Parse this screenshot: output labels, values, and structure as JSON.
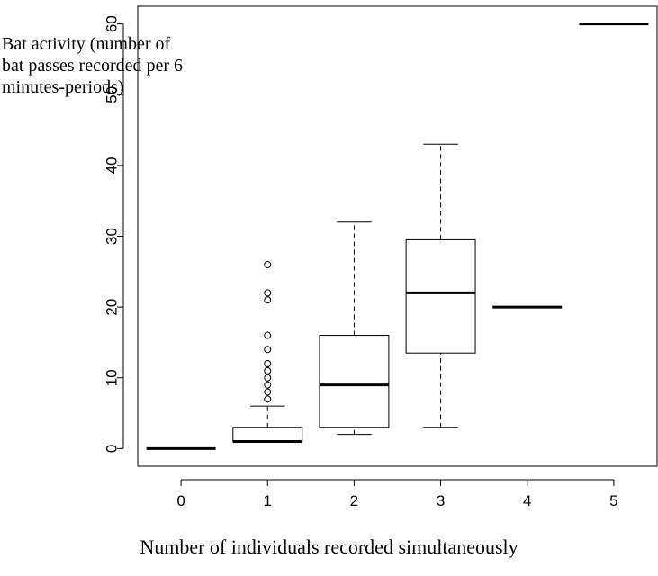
{
  "chart_data": {
    "type": "box",
    "title": "",
    "xlabel": "Number of individuals recorded simultaneously",
    "ylabel_lines": [
      "Bat activity (number of",
      "bat passes recorded per 6",
      "minutes-periods)"
    ],
    "categories": [
      "0",
      "1",
      "2",
      "3",
      "4",
      "5"
    ],
    "yticks": [
      0,
      10,
      20,
      30,
      40,
      50,
      60
    ],
    "ylim": [
      -2.5,
      62.5
    ],
    "grid": false,
    "boxes": [
      {
        "category": "0",
        "min": 0,
        "q1": 0,
        "median": 0,
        "q3": 0,
        "max": 0,
        "outliers": []
      },
      {
        "category": "1",
        "min": 1,
        "q1": 1,
        "median": 1,
        "q3": 3,
        "max": 6,
        "outliers": [
          7,
          8,
          9,
          10,
          11,
          12,
          14,
          16,
          21,
          22,
          26
        ]
      },
      {
        "category": "2",
        "min": 2,
        "q1": 3,
        "median": 9,
        "q3": 16,
        "max": 32,
        "outliers": []
      },
      {
        "category": "3",
        "min": 3,
        "q1": 13.5,
        "median": 22,
        "q3": 29.5,
        "max": 43,
        "outliers": []
      },
      {
        "category": "4",
        "min": 20,
        "q1": 20,
        "median": 20,
        "q3": 20,
        "max": 20,
        "outliers": []
      },
      {
        "category": "5",
        "min": 60,
        "q1": 60,
        "median": 60,
        "q3": 60,
        "max": 60,
        "outliers": []
      }
    ]
  }
}
